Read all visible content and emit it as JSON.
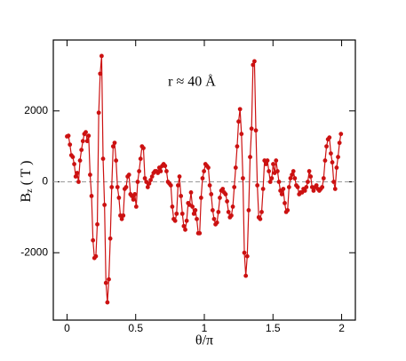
{
  "chart_data": {
    "type": "line",
    "annotation": "r ≈ 40 Å",
    "xlabel": "θ/π",
    "ylabel": "B",
    "ylabel_subscript": "z",
    "ylabel_unit": "( T )",
    "xlim": [
      -0.1,
      2.1
    ],
    "xticks": [
      0,
      0.5,
      1,
      1.5,
      2
    ],
    "ylim": [
      -3900,
      4000
    ],
    "yticks": [
      -2000,
      0,
      2000
    ],
    "zero_line": true,
    "series": [
      {
        "color": "#cc1111",
        "x": [
          0,
          0.0105,
          0.021,
          0.0315,
          0.042,
          0.0525,
          0.063,
          0.0735,
          0.084,
          0.0945,
          0.105,
          0.1155,
          0.126,
          0.1365,
          0.147,
          0.1575,
          0.168,
          0.1785,
          0.189,
          0.1995,
          0.21,
          0.2205,
          0.231,
          0.2415,
          0.252,
          0.2625,
          0.273,
          0.2835,
          0.294,
          0.3045,
          0.315,
          0.3255,
          0.336,
          0.3465,
          0.357,
          0.3675,
          0.378,
          0.3885,
          0.399,
          0.4095,
          0.42,
          0.4305,
          0.441,
          0.4515,
          0.462,
          0.4725,
          0.483,
          0.4935,
          0.504,
          0.5145,
          0.525,
          0.5355,
          0.546,
          0.5565,
          0.567,
          0.5775,
          0.588,
          0.5985,
          0.609,
          0.6195,
          0.63,
          0.6405,
          0.651,
          0.6615,
          0.672,
          0.6825,
          0.693,
          0.7035,
          0.714,
          0.7245,
          0.735,
          0.7455,
          0.756,
          0.7665,
          0.777,
          0.7875,
          0.798,
          0.8085,
          0.819,
          0.8295,
          0.84,
          0.8505,
          0.861,
          0.8715,
          0.882,
          0.8925,
          0.903,
          0.9135,
          0.924,
          0.9345,
          0.945,
          0.9555,
          0.966,
          0.9765,
          0.987,
          0.9975,
          1.008,
          1.0185,
          1.029,
          1.0395,
          1.05,
          1.0605,
          1.071,
          1.0815,
          1.092,
          1.1025,
          1.113,
          1.1235,
          1.134,
          1.1445,
          1.155,
          1.1655,
          1.176,
          1.1865,
          1.197,
          1.2075,
          1.218,
          1.2285,
          1.239,
          1.2495,
          1.26,
          1.2705,
          1.281,
          1.2915,
          1.302,
          1.3125,
          1.323,
          1.3335,
          1.344,
          1.3545,
          1.365,
          1.3755,
          1.386,
          1.3965,
          1.407,
          1.4175,
          1.428,
          1.4385,
          1.449,
          1.4595,
          1.47,
          1.4805,
          1.491,
          1.5015,
          1.512,
          1.5225,
          1.533,
          1.5435,
          1.554,
          1.5645,
          1.575,
          1.5855,
          1.596,
          1.6065,
          1.617,
          1.6275,
          1.638,
          1.6485,
          1.659,
          1.6695,
          1.68,
          1.6905,
          1.701,
          1.7115,
          1.722,
          1.7325,
          1.743,
          1.7535,
          1.764,
          1.7745,
          1.785,
          1.7955,
          1.806,
          1.8165,
          1.827,
          1.8375,
          1.848,
          1.8585,
          1.869,
          1.8795,
          1.89,
          1.9005,
          1.911,
          1.9215,
          1.932,
          1.9425,
          1.953,
          1.9635,
          1.974,
          1.9845,
          1.995
        ],
        "values": [
          1280,
          1300,
          1050,
          750,
          700,
          500,
          150,
          250,
          0,
          600,
          900,
          1150,
          1350,
          1400,
          1150,
          1300,
          200,
          -400,
          -1650,
          -2150,
          -2100,
          -1200,
          1950,
          3050,
          3550,
          650,
          -650,
          -2850,
          -3400,
          -2750,
          -1600,
          -150,
          1000,
          1100,
          600,
          -150,
          -450,
          -950,
          -1050,
          -950,
          -200,
          -150,
          150,
          200,
          -350,
          -400,
          -500,
          -350,
          -700,
          0,
          300,
          650,
          1000,
          950,
          100,
          0,
          -150,
          -50,
          50,
          150,
          250,
          300,
          300,
          250,
          400,
          300,
          450,
          500,
          450,
          300,
          0,
          -50,
          -100,
          -700,
          -1050,
          -1100,
          -900,
          -100,
          150,
          -400,
          -900,
          -1250,
          -1350,
          -1100,
          -600,
          -650,
          -300,
          -700,
          -900,
          -800,
          -1050,
          -1450,
          -1450,
          -450,
          100,
          300,
          500,
          450,
          400,
          -100,
          -350,
          -800,
          -1050,
          -1200,
          -1150,
          -850,
          -450,
          -250,
          -200,
          -300,
          -350,
          -550,
          -850,
          -1000,
          -950,
          -700,
          -150,
          400,
          1000,
          1700,
          2050,
          1350,
          100,
          -2000,
          -2650,
          -2100,
          -800,
          700,
          1500,
          3300,
          3400,
          1450,
          -100,
          -1000,
          -1050,
          -850,
          -200,
          600,
          500,
          600,
          300,
          0,
          100,
          500,
          250,
          600,
          300,
          0,
          -250,
          -350,
          -200,
          -600,
          -850,
          -800,
          -150,
          100,
          200,
          300,
          100,
          -100,
          -150,
          -350,
          -300,
          -300,
          -200,
          -250,
          -150,
          0,
          300,
          150,
          -150,
          -250,
          -150,
          -100,
          -200,
          -250,
          -200,
          -150,
          100,
          600,
          1000,
          1200,
          1250,
          800,
          550,
          0,
          -200,
          400,
          700,
          1100,
          1350
        ]
      }
    ]
  }
}
